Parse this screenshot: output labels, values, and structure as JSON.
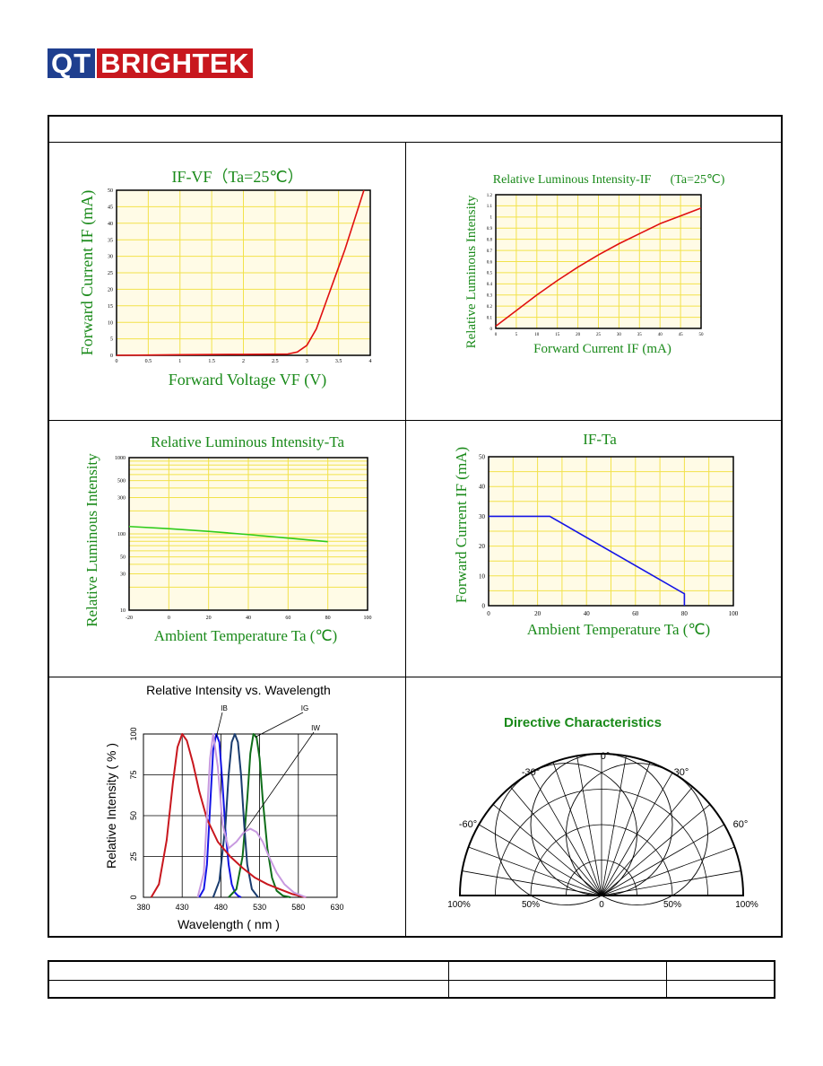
{
  "logo": {
    "qt": "QT",
    "brand": "BRIGHTEK"
  },
  "colors": {
    "grid": "#f2e24a",
    "plot_bg": "#fffbe6",
    "red": "#e01010",
    "green": "#2ecc1a",
    "blue": "#1414e6",
    "title_green": "#1a8a1a"
  },
  "chart_data": [
    {
      "type": "line",
      "title": "IF-VF（Ta=25℃）",
      "xlabel": "Forward Voltage VF (V)",
      "ylabel": "Forward Current IF (mA)",
      "xlim": [
        0,
        4
      ],
      "ylim": [
        0,
        50
      ],
      "xticks": [
        "0",
        "0.5",
        "1",
        "1.5",
        "2",
        "2.5",
        "3",
        "3.5",
        "4"
      ],
      "yticks": [
        "0",
        "5",
        "10",
        "15",
        "20",
        "25",
        "30",
        "35",
        "40",
        "45",
        "50"
      ],
      "series": [
        {
          "x": [
            0,
            1,
            2,
            2.7,
            2.85,
            3.0,
            3.15,
            3.3,
            3.45,
            3.6,
            3.75,
            3.9
          ],
          "y": [
            0,
            0.2,
            0.3,
            0.4,
            1,
            3,
            8,
            16,
            24,
            32,
            41,
            50
          ]
        }
      ]
    },
    {
      "type": "line",
      "title": "Relative Luminous Intensity-IF",
      "title_extra": "(Ta=25℃)",
      "xlabel": "Forward Current IF (mA)",
      "ylabel": "Relative Luminous Intensity",
      "xlim": [
        0,
        50
      ],
      "ylim": [
        0,
        1.2
      ],
      "xticks": [
        "0",
        "5",
        "10",
        "15",
        "20",
        "25",
        "30",
        "35",
        "40",
        "45",
        "50"
      ],
      "yticks": [
        "0",
        "0.1",
        "0.2",
        "0.3",
        "0.4",
        "0.5",
        "0.6",
        "0.7",
        "0.8",
        "0.9",
        "1",
        "1.1",
        "1.2"
      ],
      "series": [
        {
          "x": [
            0,
            5,
            10,
            15,
            20,
            25,
            30,
            35,
            40,
            45,
            50
          ],
          "y": [
            0.02,
            0.16,
            0.3,
            0.43,
            0.55,
            0.66,
            0.76,
            0.85,
            0.94,
            1.01,
            1.08
          ]
        }
      ]
    },
    {
      "type": "line",
      "title": "Relative Luminous Intensity-Ta",
      "xlabel": "Ambient Temperature Ta (℃)",
      "ylabel": "Relative Luminous Intensity",
      "xlim": [
        -20,
        100
      ],
      "ylim": [
        10,
        1000
      ],
      "yscale": "log",
      "xticks": [
        "-20",
        "0",
        "20",
        "40",
        "60",
        "80",
        "100"
      ],
      "yticks": [
        "10",
        "30",
        "50",
        "100",
        "300",
        "500",
        "1000"
      ],
      "series": [
        {
          "x": [
            -20,
            0,
            20,
            40,
            60,
            80
          ],
          "y": [
            125,
            117,
            108,
            98,
            88,
            79
          ]
        }
      ]
    },
    {
      "type": "line",
      "title": "IF-Ta",
      "xlabel": "Ambient Temperature Ta (℃)",
      "ylabel": "Forward Current IF (mA)",
      "xlim": [
        0,
        100
      ],
      "ylim": [
        0,
        50
      ],
      "xticks": [
        "0",
        "20",
        "40",
        "60",
        "80",
        "100"
      ],
      "yticks": [
        "0",
        "10",
        "20",
        "30",
        "40",
        "50"
      ],
      "series": [
        {
          "x": [
            0,
            25,
            80,
            80
          ],
          "y": [
            30,
            30,
            4,
            0
          ]
        }
      ]
    },
    {
      "type": "line",
      "title": "Relative Intensity vs. Wavelength",
      "xlabel": "Wavelength ( nm )",
      "ylabel": "Relative Intensity ( % )",
      "xlim": [
        380,
        630
      ],
      "ylim": [
        0,
        100
      ],
      "xticks": [
        "380",
        "430",
        "480",
        "530",
        "580",
        "630"
      ],
      "yticks": [
        "0",
        "25",
        "50",
        "75",
        "100"
      ],
      "series": [
        {
          "name": "IB",
          "color": "#1414e6",
          "x": [
            452,
            458,
            462,
            466,
            470,
            474,
            478,
            482,
            486,
            490,
            494,
            498,
            502,
            506
          ],
          "y": [
            0,
            5,
            20,
            55,
            90,
            100,
            95,
            70,
            40,
            20,
            8,
            3,
            1,
            0
          ]
        },
        {
          "name": "IG",
          "color": "#0f6e1a",
          "x": [
            490,
            500,
            508,
            514,
            518,
            522,
            526,
            530,
            534,
            540,
            546,
            552,
            560,
            570
          ],
          "y": [
            0,
            5,
            25,
            60,
            88,
            100,
            98,
            85,
            60,
            30,
            12,
            4,
            1,
            0
          ]
        },
        {
          "name": "",
          "color": "#1a3c6e",
          "x": [
            470,
            478,
            486,
            490,
            494,
            498,
            502,
            506,
            510,
            514,
            520,
            528
          ],
          "y": [
            0,
            10,
            45,
            75,
            95,
            100,
            95,
            75,
            45,
            20,
            5,
            0
          ]
        },
        {
          "name": "",
          "color": "#c8171e",
          "x": [
            390,
            400,
            410,
            418,
            424,
            430,
            436,
            444,
            452,
            462,
            476,
            492,
            508,
            524,
            540,
            556,
            572,
            590
          ],
          "y": [
            0,
            8,
            35,
            70,
            92,
            100,
            96,
            82,
            65,
            48,
            34,
            25,
            18,
            12,
            8,
            5,
            2,
            0
          ]
        },
        {
          "name": "IW",
          "color": "#c89ae0",
          "x": [
            450,
            458,
            462,
            466,
            470,
            476,
            482,
            490,
            500,
            510,
            518,
            526,
            534,
            542,
            552,
            562,
            574,
            590
          ],
          "y": [
            0,
            15,
            50,
            85,
            100,
            80,
            45,
            30,
            34,
            40,
            42,
            40,
            34,
            25,
            15,
            8,
            3,
            0
          ]
        }
      ]
    },
    {
      "type": "polar",
      "title": "Directive Characteristics",
      "angle_labels": [
        "0°",
        "30°",
        "-30°",
        "60°",
        "-60°"
      ],
      "radial_labels": [
        "100%",
        "50%",
        "0",
        "50%",
        "100%"
      ]
    }
  ]
}
